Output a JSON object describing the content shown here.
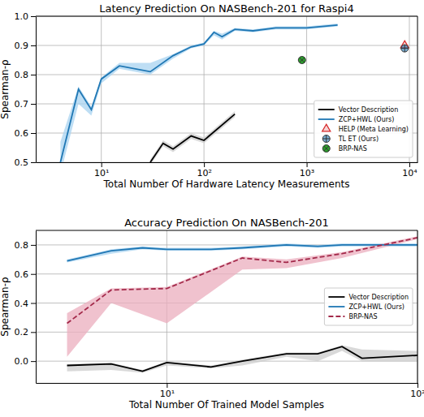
{
  "chart_data": [
    {
      "type": "line",
      "title": "Latency Prediction On NASBench-201 for Raspi4",
      "x_label": "Total Number Of Hardware Latency Measurements",
      "y_label": "Spearman-ρ",
      "log": "x",
      "grid": true,
      "legend": "lower right",
      "xlim": [
        2.3,
        12000
      ],
      "xticks": [
        {
          "value": 10,
          "label": "10¹"
        },
        {
          "value": 100,
          "label": "10²"
        },
        {
          "value": 1000,
          "label": "10³"
        },
        {
          "value": 10000,
          "label": "10⁴"
        }
      ],
      "ylim": [
        0.5,
        1
      ],
      "yticks": [
        0.5,
        0.6,
        0.7,
        0.8,
        0.9,
        {
          "value": 1,
          "label": "1.0"
        }
      ],
      "series": [
        {
          "name": "Vector Description",
          "type": "line",
          "line_style": "solid",
          "color": "#000000",
          "x": [
            30,
            40,
            50,
            75,
            100,
            200
          ],
          "values": [
            0.5,
            0.565,
            0.545,
            0.59,
            0.575,
            0.665
          ],
          "lower": [
            0.49,
            0.555,
            0.535,
            0.58,
            0.565,
            0.655
          ],
          "upper": [
            0.51,
            0.575,
            0.555,
            0.6,
            0.585,
            0.675
          ]
        },
        {
          "name": "ZCP+HWL (Ours)",
          "type": "line",
          "line_style": "solid",
          "color": "#1f77b4",
          "x": [
            4,
            6,
            8,
            10,
            15,
            30,
            50,
            75,
            100,
            125,
            150,
            200,
            300,
            500,
            1000,
            2000
          ],
          "values": [
            0.5,
            0.75,
            0.68,
            0.785,
            0.83,
            0.81,
            0.865,
            0.895,
            0.905,
            0.945,
            0.93,
            0.955,
            0.95,
            0.96,
            0.96,
            0.97
          ],
          "lower": [
            0.46,
            0.7,
            0.66,
            0.77,
            0.82,
            0.8,
            0.855,
            0.89,
            0.9,
            0.935,
            0.92,
            0.95,
            0.945,
            0.955,
            0.955,
            0.965
          ],
          "upper": [
            0.57,
            0.76,
            0.69,
            0.79,
            0.84,
            0.84,
            0.87,
            0.9,
            0.91,
            0.95,
            0.94,
            0.96,
            0.955,
            0.965,
            0.965,
            0.975
          ]
        },
        {
          "name": "HELP (Meta Learning)",
          "type": "scatter",
          "marker": "triangle",
          "color": "#d62728",
          "x": [
            9000
          ],
          "values": [
            0.9
          ]
        },
        {
          "name": "TL ET (Ours)",
          "type": "scatter",
          "marker": "circle-plus",
          "color": "#1f77b4",
          "x": [
            9000
          ],
          "values": [
            0.89
          ]
        },
        {
          "name": "BRP-NAS",
          "type": "scatter",
          "marker": "circle-x",
          "color": "#2ca02c",
          "x": [
            900
          ],
          "values": [
            0.85
          ]
        }
      ]
    },
    {
      "type": "line",
      "title": "Accuracy Prediction On NASBench-201",
      "x_label": "Total Number Of Trained Model Samples",
      "y_label": "Spearman-ρ",
      "log": "x",
      "grid": true,
      "legend": "center right",
      "xlim": [
        3,
        100
      ],
      "xticks": [
        {
          "value": 10,
          "label": "10¹"
        },
        {
          "value": 100,
          "label": "10²"
        }
      ],
      "ylim": [
        -0.15,
        0.9
      ],
      "yticks": [
        {
          "value": 0,
          "label": "0.0"
        },
        0.2,
        0.4,
        0.6,
        0.8
      ],
      "series": [
        {
          "name": "Vector Description",
          "type": "line",
          "line_style": "solid",
          "color": "#000000",
          "x": [
            4,
            6,
            8,
            10,
            15,
            20,
            30,
            40,
            50,
            60,
            100
          ],
          "values": [
            -0.03,
            -0.02,
            -0.07,
            -0.01,
            -0.04,
            0.0,
            0.05,
            0.05,
            0.1,
            0.02,
            0.04
          ],
          "lower": [
            -0.07,
            -0.06,
            -0.08,
            -0.03,
            -0.05,
            -0.03,
            0.03,
            0.0,
            0.07,
            0.0,
            0.0
          ],
          "upper": [
            -0.02,
            -0.01,
            -0.06,
            0.0,
            -0.03,
            0.01,
            0.06,
            0.06,
            0.11,
            0.08,
            0.07
          ]
        },
        {
          "name": "ZCP+HWL (Ours)",
          "type": "line",
          "line_style": "solid",
          "color": "#1f77b4",
          "x": [
            4,
            6,
            8,
            10,
            15,
            20,
            30,
            40,
            50,
            75,
            100
          ],
          "values": [
            0.69,
            0.76,
            0.78,
            0.77,
            0.77,
            0.78,
            0.8,
            0.79,
            0.8,
            0.8,
            0.8
          ],
          "lower": [
            0.68,
            0.74,
            0.77,
            0.76,
            0.76,
            0.77,
            0.79,
            0.78,
            0.79,
            0.79,
            0.79
          ],
          "upper": [
            0.7,
            0.77,
            0.79,
            0.78,
            0.78,
            0.79,
            0.81,
            0.8,
            0.81,
            0.81,
            0.81
          ]
        },
        {
          "name": "BRP-NAS",
          "type": "line",
          "line_style": "dashed",
          "color": "#a3294a",
          "x": [
            4,
            6,
            10,
            20,
            30,
            50,
            100
          ],
          "values": [
            0.26,
            0.49,
            0.5,
            0.71,
            0.68,
            0.74,
            0.85
          ],
          "lower": [
            0.03,
            0.4,
            0.26,
            0.63,
            0.64,
            0.71,
            0.84
          ],
          "upper": [
            0.33,
            0.5,
            0.51,
            0.72,
            0.7,
            0.75,
            0.86
          ]
        }
      ]
    }
  ]
}
